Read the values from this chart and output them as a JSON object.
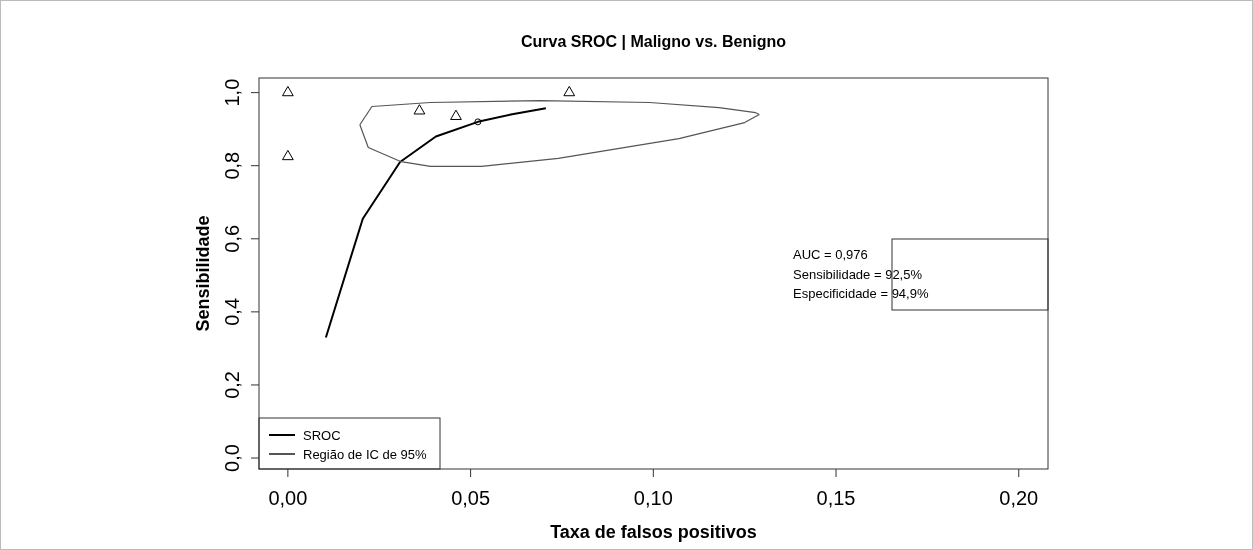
{
  "chart_data": {
    "type": "line",
    "title": "Curva SROC | Maligno vs. Benigno",
    "xlabel": "Taxa de falsos positivos",
    "ylabel": "Sensibilidade",
    "xlim": [
      -0.0079,
      0.208
    ],
    "ylim": [
      -0.03,
      1.04
    ],
    "xticks": [
      {
        "value": 0,
        "label": "0,00"
      },
      {
        "value": 0.05,
        "label": "0,05"
      },
      {
        "value": 0.1,
        "label": "0,10"
      },
      {
        "value": 0.15,
        "label": "0,15"
      },
      {
        "value": 0.2,
        "label": "0,20"
      }
    ],
    "yticks": [
      {
        "value": 0,
        "label": "0,0"
      },
      {
        "value": 0.2,
        "label": "0,2"
      },
      {
        "value": 0.4,
        "label": "0,4"
      },
      {
        "value": 0.6,
        "label": "0,6"
      },
      {
        "value": 0.8,
        "label": "0,8"
      },
      {
        "value": 1,
        "label": "1,0"
      }
    ],
    "grid": false,
    "legend": "bottom left",
    "annotations": [
      "AUC = 0,976",
      "Sensibilidade = 92,5%",
      "Especificidade = 94,9%"
    ],
    "series": [
      {
        "name": "SROC",
        "color": "#000000",
        "marker": "none",
        "x": [
          0.0104,
          0.0205,
          0.0307,
          0.0405,
          0.052,
          0.061,
          0.0706
        ],
        "values": [
          0.33,
          0.655,
          0.81,
          0.88,
          0.92,
          0.94,
          0.957
        ]
      },
      {
        "name": "Região de IC de 95%",
        "color": "#555555",
        "marker": "none",
        "x": [
          0.0197,
          0.023,
          0.039,
          0.069,
          0.099,
          0.118,
          0.128,
          0.129
        ],
        "values": [
          0.912,
          0.962,
          0.973,
          0.978,
          0.973,
          0.959,
          0.945,
          0.94
        ]
      },
      {
        "color": "#555555",
        "marker": "none",
        "x": [
          0.0197,
          0.022,
          0.031,
          0.039,
          0.053,
          0.074,
          0.107,
          0.125,
          0.129
        ],
        "values": [
          0.912,
          0.85,
          0.811,
          0.798,
          0.798,
          0.82,
          0.874,
          0.918,
          0.94
        ]
      },
      {
        "type": "scatter",
        "color": "#000000",
        "marker": "triangle",
        "x": [
          0,
          0,
          0.036,
          0.046,
          0.077
        ],
        "values": [
          1.0,
          0.825,
          0.95,
          0.935,
          1.0
        ]
      },
      {
        "type": "scatter",
        "color": "#000000",
        "marker": "circle",
        "x": [
          0.052
        ],
        "values": [
          0.92
        ]
      }
    ]
  }
}
